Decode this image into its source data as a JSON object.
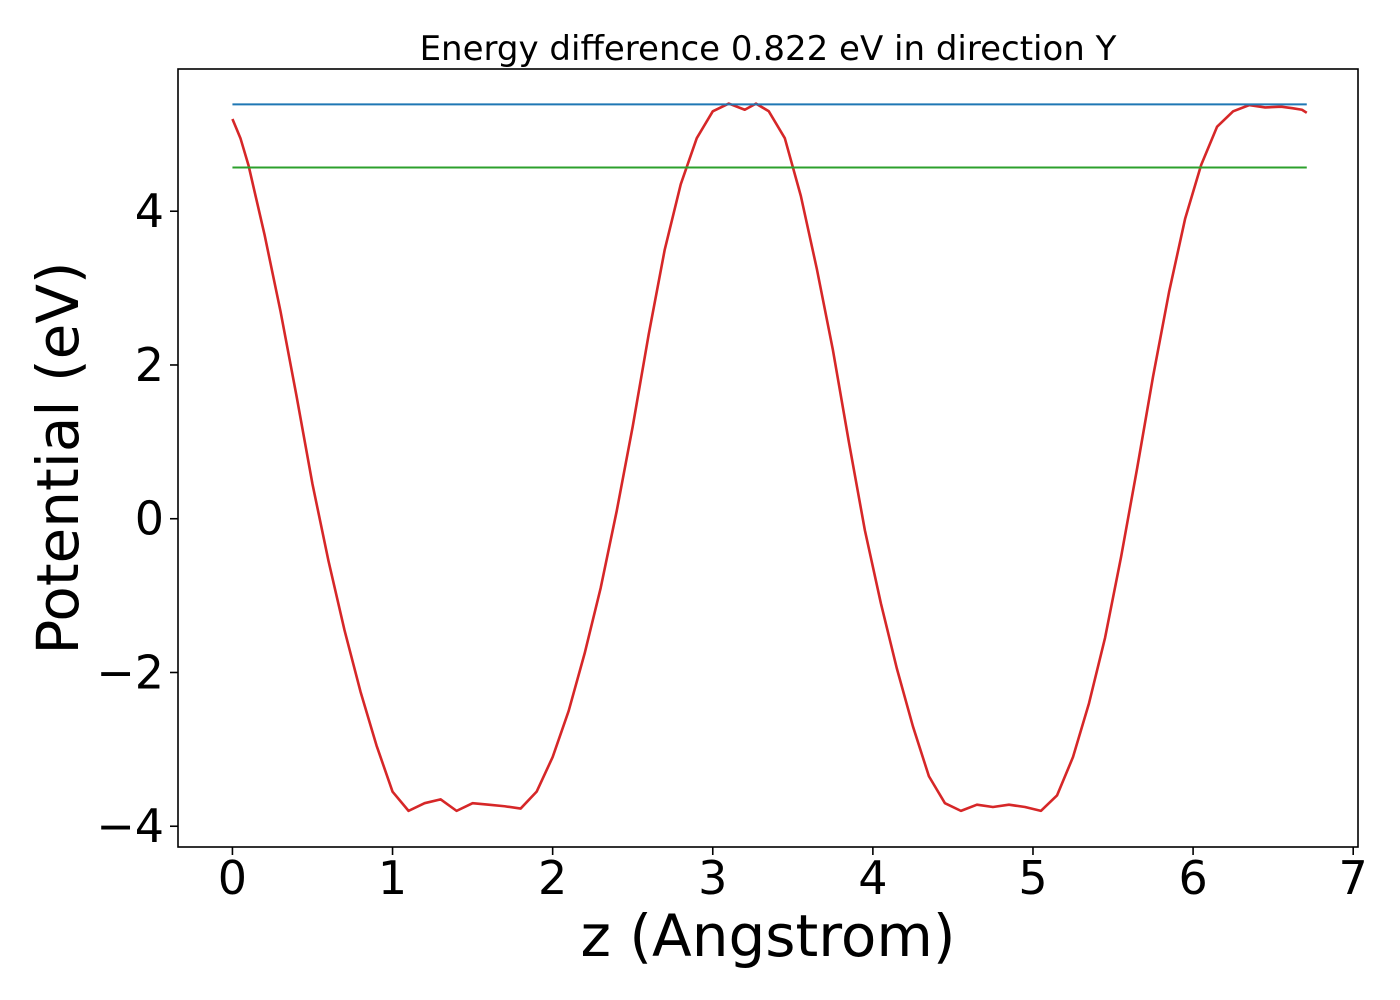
{
  "chart_data": {
    "type": "line",
    "title": "Energy difference 0.822 eV in direction Y",
    "xlabel": "z (Angstrom)",
    "ylabel": "Potential (eV)",
    "xlim": [
      -0.34,
      7.03
    ],
    "ylim": [
      -4.27,
      5.85
    ],
    "x_ticks": [
      0,
      1,
      2,
      3,
      4,
      5,
      6,
      7
    ],
    "x_tick_labels": [
      "0",
      "1",
      "2",
      "3",
      "4",
      "5",
      "6",
      "7"
    ],
    "y_ticks": [
      -4,
      -2,
      0,
      2,
      4
    ],
    "y_tick_labels": [
      "−4",
      "−2",
      "0",
      "2",
      "4"
    ],
    "grid": false,
    "legend": "none",
    "series": [
      {
        "color": "#d62728",
        "x": [
          0.0,
          0.05,
          0.1,
          0.15,
          0.2,
          0.3,
          0.4,
          0.5,
          0.6,
          0.7,
          0.8,
          0.9,
          1.0,
          1.1,
          1.2,
          1.3,
          1.4,
          1.5,
          1.6,
          1.7,
          1.8,
          1.9,
          2.0,
          2.1,
          2.2,
          2.3,
          2.4,
          2.5,
          2.6,
          2.7,
          2.8,
          2.9,
          3.0,
          3.1,
          3.2,
          3.27,
          3.35,
          3.45,
          3.55,
          3.65,
          3.75,
          3.85,
          3.95,
          4.05,
          4.15,
          4.25,
          4.35,
          4.45,
          4.55,
          4.65,
          4.75,
          4.85,
          4.95,
          5.05,
          5.15,
          5.25,
          5.35,
          5.45,
          5.55,
          5.65,
          5.75,
          5.85,
          5.95,
          6.05,
          6.15,
          6.25,
          6.35,
          6.45,
          6.55,
          6.62,
          6.68,
          6.71
        ],
        "y": [
          5.2,
          4.95,
          4.6,
          4.15,
          3.7,
          2.7,
          1.6,
          0.45,
          -0.55,
          -1.45,
          -2.25,
          -2.95,
          -3.55,
          -3.8,
          -3.7,
          -3.65,
          -3.8,
          -3.7,
          -3.72,
          -3.74,
          -3.77,
          -3.55,
          -3.1,
          -2.5,
          -1.75,
          -0.9,
          0.1,
          1.2,
          2.4,
          3.5,
          4.35,
          4.95,
          5.3,
          5.4,
          5.32,
          5.4,
          5.3,
          4.95,
          4.2,
          3.25,
          2.2,
          1.0,
          -0.15,
          -1.1,
          -1.95,
          -2.7,
          -3.35,
          -3.7,
          -3.8,
          -3.72,
          -3.75,
          -3.72,
          -3.75,
          -3.8,
          -3.6,
          -3.1,
          -2.4,
          -1.55,
          -0.5,
          0.65,
          1.85,
          2.95,
          3.9,
          4.6,
          5.1,
          5.3,
          5.38,
          5.35,
          5.36,
          5.34,
          5.32,
          5.28
        ]
      },
      {
        "color": "#1f77b4",
        "x": [
          0.0,
          6.71
        ],
        "y": [
          5.39,
          5.39
        ]
      },
      {
        "color": "#2ca02c",
        "x": [
          0.0,
          6.71
        ],
        "y": [
          4.568,
          4.568
        ]
      }
    ]
  }
}
